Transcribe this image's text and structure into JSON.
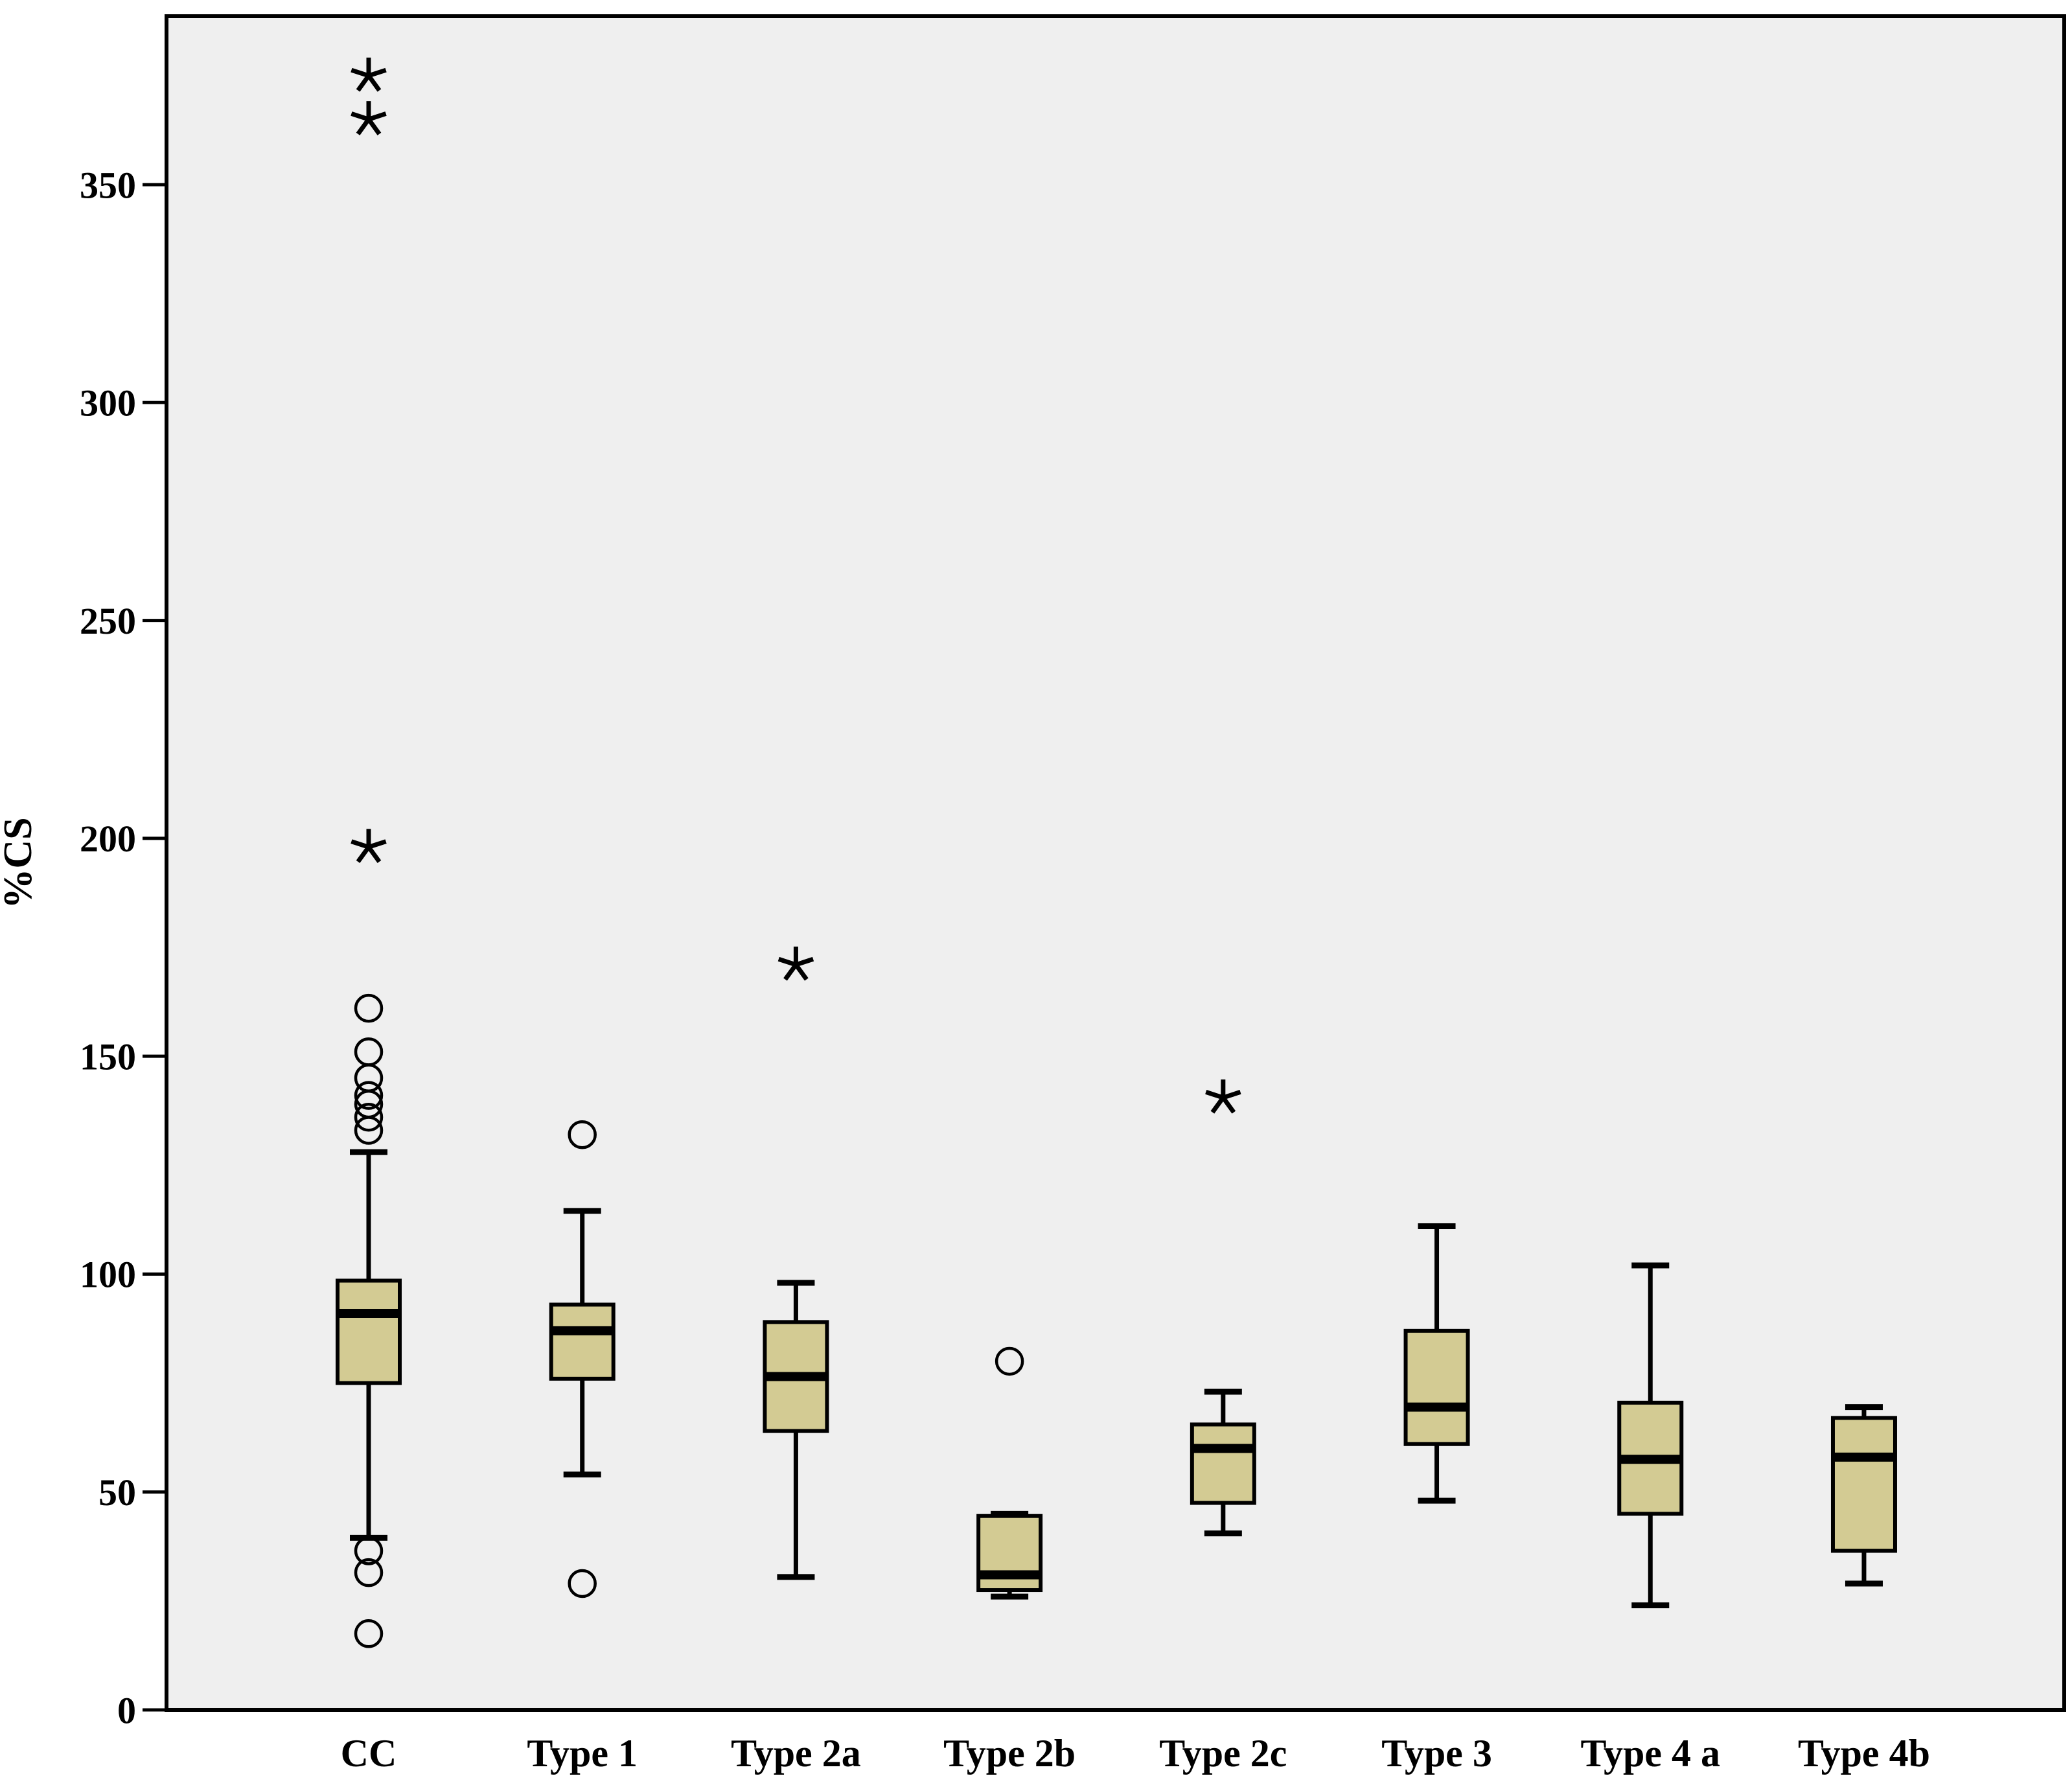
{
  "figure": {
    "kind": "spss-style-boxplot",
    "background_color": "#ffffff"
  },
  "chart_data": {
    "type": "boxplot",
    "title": "",
    "xlabel": "",
    "ylabel": "%CS",
    "yticks": [
      0,
      50,
      100,
      150,
      200,
      250,
      300,
      350
    ],
    "ylim": [
      0,
      388
    ],
    "grid": false,
    "plot_background": "#efefef",
    "box_fill": "#d3cb93",
    "line_color": "#000000",
    "categories": [
      "CC",
      "Type 1",
      "Type 2a",
      "Type 2b",
      "Type 2c",
      "Type 3",
      "Type 4 a",
      "Type 4b"
    ],
    "series": [
      {
        "category": "CC",
        "whisker_low": 39.5,
        "q1": 75,
        "median": 91,
        "q3": 98.5,
        "whisker_high": 128,
        "outliers_circle": [
          161,
          151,
          145,
          141,
          139,
          136,
          133,
          36.5,
          31.5,
          17.5
        ],
        "outliers_extreme": [
          375,
          365,
          198
        ]
      },
      {
        "category": "Type 1",
        "whisker_low": 54,
        "q1": 76,
        "median": 87,
        "q3": 93,
        "whisker_high": 114.5,
        "outliers_circle": [
          132,
          29
        ],
        "outliers_extreme": []
      },
      {
        "category": "Type 2a",
        "whisker_low": 30.5,
        "q1": 64,
        "median": 76.5,
        "q3": 89,
        "whisker_high": 98,
        "outliers_circle": [],
        "outliers_extreme": [
          171
        ]
      },
      {
        "category": "Type 2b",
        "whisker_low": 26,
        "q1": 27.5,
        "median": 31,
        "q3": 44.5,
        "whisker_high": 45,
        "outliers_circle": [
          80
        ],
        "outliers_extreme": []
      },
      {
        "category": "Type 2c",
        "whisker_low": 40.5,
        "q1": 47.5,
        "median": 60,
        "q3": 65.5,
        "whisker_high": 73,
        "outliers_circle": [],
        "outliers_extreme": [
          140.5
        ]
      },
      {
        "category": "Type 3",
        "whisker_low": 48,
        "q1": 61,
        "median": 69.5,
        "q3": 87,
        "whisker_high": 111,
        "outliers_circle": [],
        "outliers_extreme": []
      },
      {
        "category": "Type 4 a",
        "whisker_low": 24,
        "q1": 45,
        "median": 57.5,
        "q3": 70.5,
        "whisker_high": 102,
        "outliers_circle": [],
        "outliers_extreme": []
      },
      {
        "category": "Type 4b",
        "whisker_low": 29,
        "q1": 36.5,
        "median": 58,
        "q3": 67,
        "whisker_high": 69.5,
        "outliers_circle": [],
        "outliers_extreme": []
      }
    ]
  }
}
